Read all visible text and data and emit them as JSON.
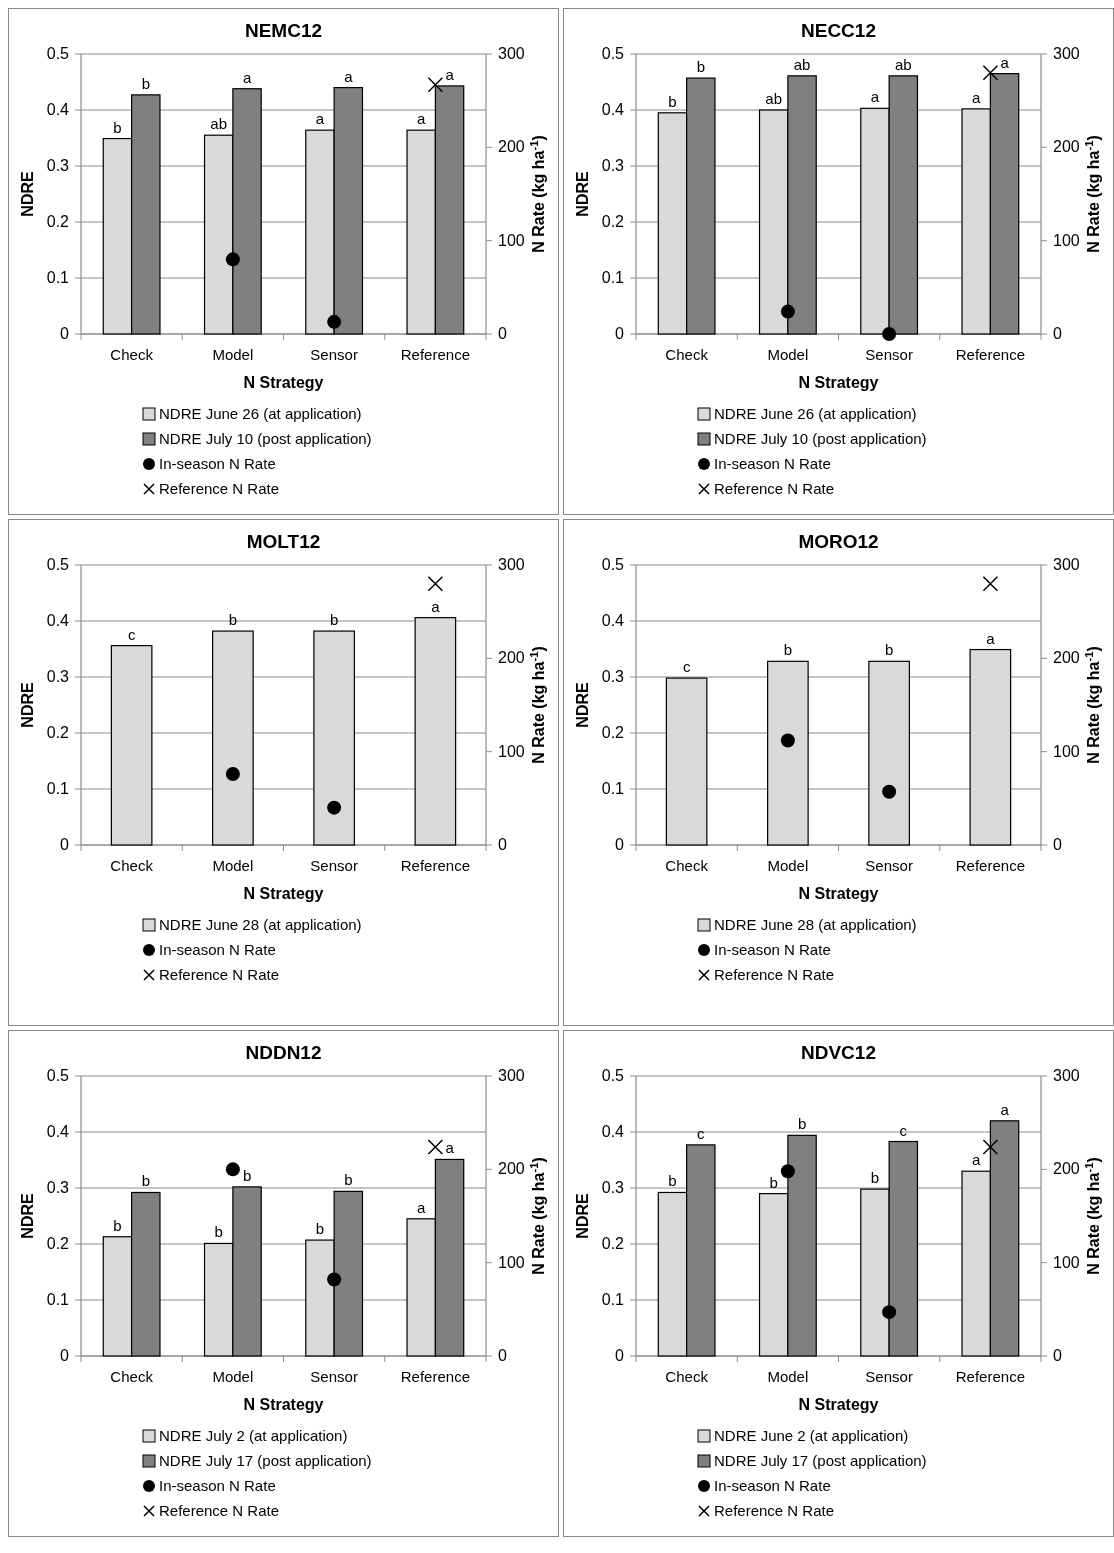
{
  "chart_data": [
    {
      "type": "bar",
      "title": "NEMC12",
      "categories": [
        "Check",
        "Model",
        "Sensor",
        "Reference"
      ],
      "xlabel": "N Strategy",
      "ylabel": "NDRE",
      "y2label": "N Rate (kg ha$^{-1}$)",
      "ylim": [
        0,
        0.5
      ],
      "yticks": [
        0,
        0.1,
        0.2,
        0.3,
        0.4,
        0.5
      ],
      "y2lim": [
        0,
        300
      ],
      "y2ticks": [
        0,
        100,
        200,
        300
      ],
      "grid": "y",
      "legend": "bottom",
      "series": [
        {
          "name": "NDRE June 26 (at application)",
          "color": "#d9d9d9",
          "values": [
            0.349,
            0.355,
            0.364,
            0.364
          ],
          "value_labels": [
            "b",
            "ab",
            "a",
            "a"
          ]
        },
        {
          "name": "NDRE July 10 (post application)",
          "color": "#808080",
          "values": [
            0.427,
            0.438,
            0.44,
            0.443
          ],
          "value_labels": [
            "b",
            "a",
            "a",
            "a"
          ]
        },
        {
          "name": "In-season N Rate",
          "type": "scatter",
          "axis": "y2",
          "marker": "circle",
          "color": "#000000",
          "values": [
            null,
            80,
            13,
            null
          ]
        },
        {
          "name": "Reference N Rate",
          "type": "scatter",
          "axis": "y2",
          "marker": "cross",
          "color": "#000000",
          "values": [
            null,
            null,
            null,
            267
          ]
        }
      ]
    },
    {
      "type": "bar",
      "title": "NECC12",
      "categories": [
        "Check",
        "Model",
        "Sensor",
        "Reference"
      ],
      "xlabel": "N Strategy",
      "ylabel": "NDRE",
      "y2label": "N Rate (kg ha$^{-1}$)",
      "ylim": [
        0,
        0.5
      ],
      "yticks": [
        0,
        0.1,
        0.2,
        0.3,
        0.4,
        0.5
      ],
      "y2lim": [
        0,
        300
      ],
      "y2ticks": [
        0,
        100,
        200,
        300
      ],
      "grid": "y",
      "legend": "bottom",
      "series": [
        {
          "name": "NDRE June 26 (at application)",
          "color": "#d9d9d9",
          "values": [
            0.395,
            0.4,
            0.403,
            0.402
          ],
          "value_labels": [
            "b",
            "ab",
            "a",
            "a"
          ]
        },
        {
          "name": "NDRE July 10 (post application)",
          "color": "#808080",
          "values": [
            0.457,
            0.461,
            0.461,
            0.465
          ],
          "value_labels": [
            "b",
            "ab",
            "ab",
            "a"
          ]
        },
        {
          "name": "In-season N Rate",
          "type": "scatter",
          "axis": "y2",
          "marker": "circle",
          "color": "#000000",
          "values": [
            null,
            24,
            0,
            null
          ]
        },
        {
          "name": "Reference N Rate",
          "type": "scatter",
          "axis": "y2",
          "marker": "cross",
          "color": "#000000",
          "values": [
            null,
            null,
            null,
            280
          ]
        }
      ]
    },
    {
      "type": "bar",
      "title": "MOLT12",
      "categories": [
        "Check",
        "Model",
        "Sensor",
        "Reference"
      ],
      "xlabel": "N Strategy",
      "ylabel": "NDRE",
      "y2label": "N Rate (kg ha$^{-1}$)",
      "ylim": [
        0,
        0.5
      ],
      "yticks": [
        0,
        0.1,
        0.2,
        0.3,
        0.4,
        0.5
      ],
      "y2lim": [
        0,
        300
      ],
      "y2ticks": [
        0,
        100,
        200,
        300
      ],
      "grid": "y",
      "legend": "bottom",
      "series": [
        {
          "name": "NDRE June 28 (at application)",
          "color": "#d9d9d9",
          "values": [
            0.356,
            0.382,
            0.382,
            0.406
          ],
          "value_labels": [
            "c",
            "b",
            "b",
            "a"
          ]
        },
        {
          "name": "In-season N Rate",
          "type": "scatter",
          "axis": "y2",
          "marker": "circle",
          "color": "#000000",
          "values": [
            null,
            76,
            40,
            null
          ]
        },
        {
          "name": "Reference N Rate",
          "type": "scatter",
          "axis": "y2",
          "marker": "cross",
          "color": "#000000",
          "values": [
            null,
            null,
            null,
            280
          ]
        }
      ]
    },
    {
      "type": "bar",
      "title": "MORO12",
      "categories": [
        "Check",
        "Model",
        "Sensor",
        "Reference"
      ],
      "xlabel": "N Strategy",
      "ylabel": "NDRE",
      "y2label": "N Rate (kg ha$^{-1}$)",
      "ylim": [
        0,
        0.5
      ],
      "yticks": [
        0,
        0.1,
        0.2,
        0.3,
        0.4,
        0.5
      ],
      "y2lim": [
        0,
        300
      ],
      "y2ticks": [
        0,
        100,
        200,
        300
      ],
      "grid": "y",
      "legend": "bottom",
      "series": [
        {
          "name": "NDRE June 28 (at application)",
          "color": "#d9d9d9",
          "values": [
            0.298,
            0.328,
            0.328,
            0.349
          ],
          "value_labels": [
            "c",
            "b",
            "b",
            "a"
          ]
        },
        {
          "name": "In-season N Rate",
          "type": "scatter",
          "axis": "y2",
          "marker": "circle",
          "color": "#000000",
          "values": [
            null,
            112,
            57,
            null
          ]
        },
        {
          "name": "Reference N Rate",
          "type": "scatter",
          "axis": "y2",
          "marker": "cross",
          "color": "#000000",
          "values": [
            null,
            null,
            null,
            280
          ]
        }
      ]
    },
    {
      "type": "bar",
      "title": "NDDN12",
      "categories": [
        "Check",
        "Model",
        "Sensor",
        "Reference"
      ],
      "xlabel": "N Strategy",
      "ylabel": "NDRE",
      "y2label": "N Rate (kg ha$^{-1}$)",
      "ylim": [
        0,
        0.5
      ],
      "yticks": [
        0,
        0.1,
        0.2,
        0.3,
        0.4,
        0.5
      ],
      "y2lim": [
        0,
        300
      ],
      "y2ticks": [
        0,
        100,
        200,
        300
      ],
      "grid": "y",
      "legend": "bottom",
      "series": [
        {
          "name": "NDRE July 2 (at application)",
          "color": "#d9d9d9",
          "values": [
            0.213,
            0.201,
            0.207,
            0.245
          ],
          "value_labels": [
            "b",
            "b",
            "b",
            "a"
          ]
        },
        {
          "name": "NDRE July 17 (post application)",
          "color": "#808080",
          "values": [
            0.292,
            0.302,
            0.294,
            0.351
          ],
          "value_labels": [
            "b",
            "b",
            "b",
            "a"
          ]
        },
        {
          "name": "In-season N Rate",
          "type": "scatter",
          "axis": "y2",
          "marker": "circle",
          "color": "#000000",
          "values": [
            null,
            200,
            82,
            null
          ]
        },
        {
          "name": "Reference N Rate",
          "type": "scatter",
          "axis": "y2",
          "marker": "cross",
          "color": "#000000",
          "values": [
            null,
            null,
            null,
            224
          ]
        }
      ]
    },
    {
      "type": "bar",
      "title": "NDVC12",
      "categories": [
        "Check",
        "Model",
        "Sensor",
        "Reference"
      ],
      "xlabel": "N Strategy",
      "ylabel": "NDRE",
      "y2label": "N Rate (kg ha$^{-1}$)",
      "ylim": [
        0,
        0.5
      ],
      "yticks": [
        0,
        0.1,
        0.2,
        0.3,
        0.4,
        0.5
      ],
      "y2lim": [
        0,
        300
      ],
      "y2ticks": [
        0,
        100,
        200,
        300
      ],
      "grid": "y",
      "legend": "bottom",
      "series": [
        {
          "name": "NDRE June 2 (at application)",
          "color": "#d9d9d9",
          "values": [
            0.292,
            0.29,
            0.298,
            0.33
          ],
          "value_labels": [
            "b",
            "b",
            "b",
            "a"
          ]
        },
        {
          "name": "NDRE July 17 (post application)",
          "color": "#808080",
          "values": [
            0.377,
            0.394,
            0.383,
            0.42
          ],
          "value_labels": [
            "c",
            "b",
            "c",
            "a"
          ]
        },
        {
          "name": "In-season N Rate",
          "type": "scatter",
          "axis": "y2",
          "marker": "circle",
          "color": "#000000",
          "values": [
            null,
            198,
            47,
            null
          ]
        },
        {
          "name": "Reference N Rate",
          "type": "scatter",
          "axis": "y2",
          "marker": "cross",
          "color": "#000000",
          "values": [
            null,
            null,
            null,
            224
          ]
        }
      ]
    }
  ]
}
